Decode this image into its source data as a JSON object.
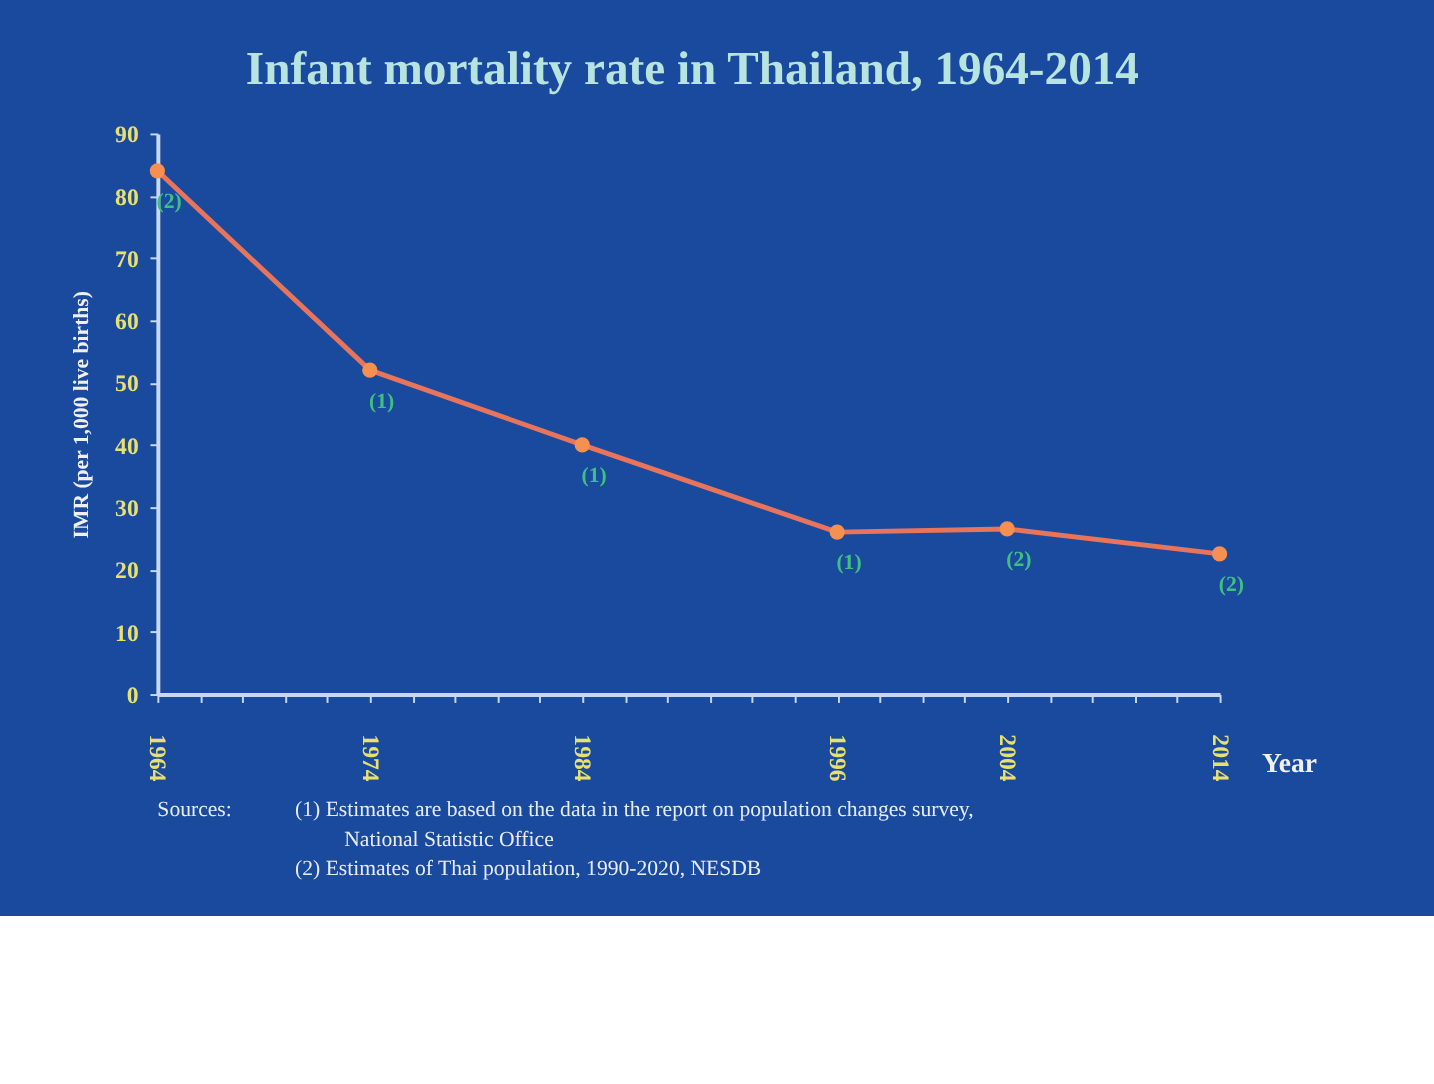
{
  "chart_data": {
    "type": "line",
    "title": "Infant mortality rate in Thailand, 1964-2014",
    "xlabel": "Year",
    "ylabel": "IMR (per 1,000 live births)",
    "x": [
      1964,
      1974,
      1984,
      1996,
      2004,
      2014
    ],
    "series": [
      {
        "color": "#e8745c",
        "values": [
          84,
          52,
          40,
          26,
          26.5,
          22.5
        ]
      }
    ],
    "marker": "circle",
    "line_style": "solid",
    "grid": false,
    "xlim": [
      1964,
      2014
    ],
    "xticks": [
      1964,
      {
        "value": 1966,
        "label": null
      },
      {
        "value": 1968,
        "label": null
      },
      {
        "value": 1970,
        "label": null
      },
      {
        "value": 1972,
        "label": null
      },
      1974,
      {
        "value": 1976,
        "label": null
      },
      {
        "value": 1978,
        "label": null
      },
      {
        "value": 1980,
        "label": null
      },
      {
        "value": 1982,
        "label": null
      },
      1984,
      {
        "value": 1986,
        "label": null
      },
      {
        "value": 1988,
        "label": null
      },
      {
        "value": 1990,
        "label": null
      },
      {
        "value": 1992,
        "label": null
      },
      {
        "value": 1994,
        "label": null
      },
      1996,
      {
        "value": 1998,
        "label": null
      },
      {
        "value": 2000,
        "label": null
      },
      {
        "value": 2002,
        "label": null
      },
      2004,
      {
        "value": 2006,
        "label": null
      },
      {
        "value": 2008,
        "label": null
      },
      {
        "value": 2010,
        "label": null
      },
      {
        "value": 2012,
        "label": null
      },
      2014
    ],
    "ylim": [
      0,
      90
    ],
    "yticks": [
      0,
      10,
      20,
      30,
      40,
      50,
      60,
      70,
      80,
      90
    ],
    "annotations": [
      {
        "text": "(2)",
        "x": 1964,
        "y": 84
      },
      {
        "text": "(1)",
        "x": 1974,
        "y": 52
      },
      {
        "text": "(1)",
        "x": 1984,
        "y": 40
      },
      {
        "text": "(1)",
        "x": 1996,
        "y": 26
      },
      {
        "text": "(2)",
        "x": 2004,
        "y": 26.5
      },
      {
        "text": "(2)",
        "x": 2014,
        "y": 22.5
      },
      "Sources:",
      "(1) Estimates are based on the data in the report on population changes survey,",
      "National Statistic Office",
      "(2) Estimates of Thai population, 1990-2020, NESDB"
    ]
  }
}
